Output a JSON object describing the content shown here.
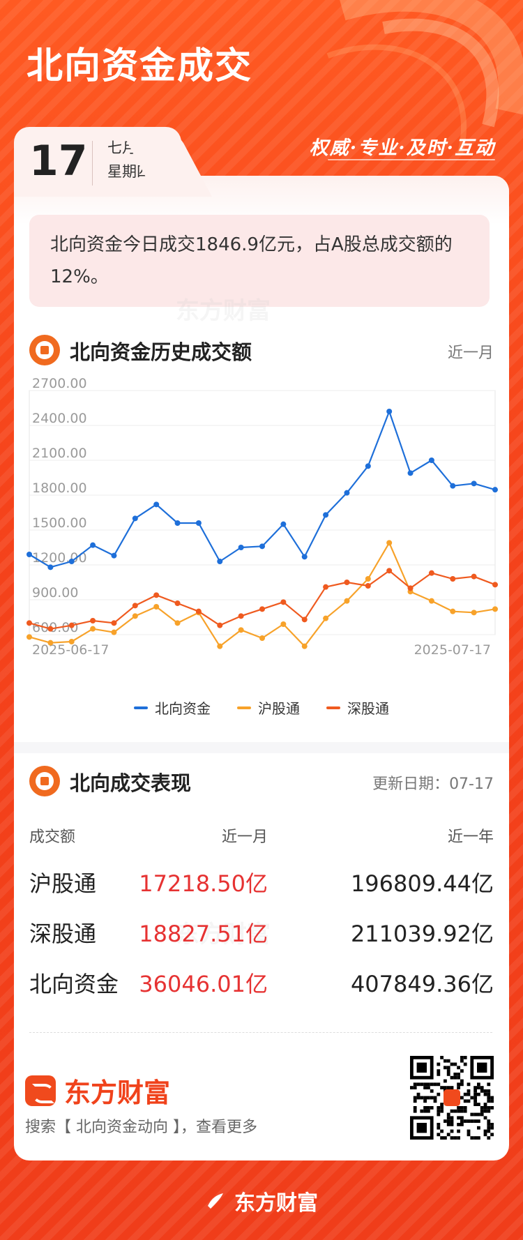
{
  "hero": {
    "title": "北向资金成交",
    "slogan": "权威·专业·及时·互动"
  },
  "date": {
    "day": "17",
    "month": "七月",
    "weekday": "星期四"
  },
  "summary": {
    "text": "北向资金今日成交1846.9亿元，占A股总成交额的12%。"
  },
  "watermark": "东方财富",
  "history_section": {
    "title": "北向资金历史成交额",
    "range_label": "近一月"
  },
  "chart_data": {
    "type": "line",
    "x": [
      "2025-06-17",
      "2025-06-18",
      "2025-06-19",
      "2025-06-20",
      "2025-06-23",
      "2025-06-24",
      "2025-06-25",
      "2025-06-26",
      "2025-06-27",
      "2025-06-30",
      "2025-07-01",
      "2025-07-02",
      "2025-07-03",
      "2025-07-04",
      "2025-07-07",
      "2025-07-08",
      "2025-07-09",
      "2025-07-10",
      "2025-07-11",
      "2025-07-14",
      "2025-07-15",
      "2025-07-16",
      "2025-07-17"
    ],
    "x_tick_labels": [
      "2025-06-17",
      "2025-07-17"
    ],
    "y_tick_labels": [
      "2700.00",
      "2400.00",
      "2100.00",
      "1800.00",
      "1500.00",
      "1200.00",
      "900.00",
      "600.00"
    ],
    "ylim": [
      600,
      2700
    ],
    "grid": true,
    "legend_position": "bottom",
    "series": [
      {
        "name": "北向资金",
        "color": "#1e6fd9",
        "values": [
          1290,
          1180,
          1230,
          1370,
          1280,
          1600,
          1720,
          1560,
          1560,
          1230,
          1350,
          1360,
          1550,
          1270,
          1630,
          1820,
          2050,
          2520,
          1990,
          2100,
          1880,
          1900,
          1846.9
        ]
      },
      {
        "name": "沪股通",
        "color": "#f7a22a",
        "values": [
          580,
          530,
          540,
          650,
          620,
          760,
          840,
          700,
          790,
          500,
          640,
          570,
          690,
          500,
          740,
          890,
          1080,
          1390,
          970,
          890,
          800,
          790,
          820
        ]
      },
      {
        "name": "深股通",
        "color": "#ef5a1f",
        "values": [
          700,
          650,
          680,
          720,
          700,
          850,
          940,
          870,
          800,
          680,
          760,
          820,
          880,
          730,
          1010,
          1050,
          1020,
          1150,
          1000,
          1130,
          1080,
          1100,
          1030
        ]
      }
    ]
  },
  "performance_section": {
    "title": "北向成交表现",
    "update_label": "更新日期：07-17",
    "headers": [
      "成交额",
      "近一月",
      "近一年"
    ],
    "rows": [
      {
        "name": "沪股通",
        "month": "17218.50亿",
        "year": "196809.44亿"
      },
      {
        "name": "深股通",
        "month": "18827.51亿",
        "year": "211039.92亿"
      },
      {
        "name": "北向资金",
        "month": "36046.01亿",
        "year": "407849.36亿"
      }
    ]
  },
  "brand": {
    "name": "东方财富",
    "hint": "搜索【 北向资金动向 】，查看更多"
  },
  "footer": {
    "brand": "东方财富"
  }
}
